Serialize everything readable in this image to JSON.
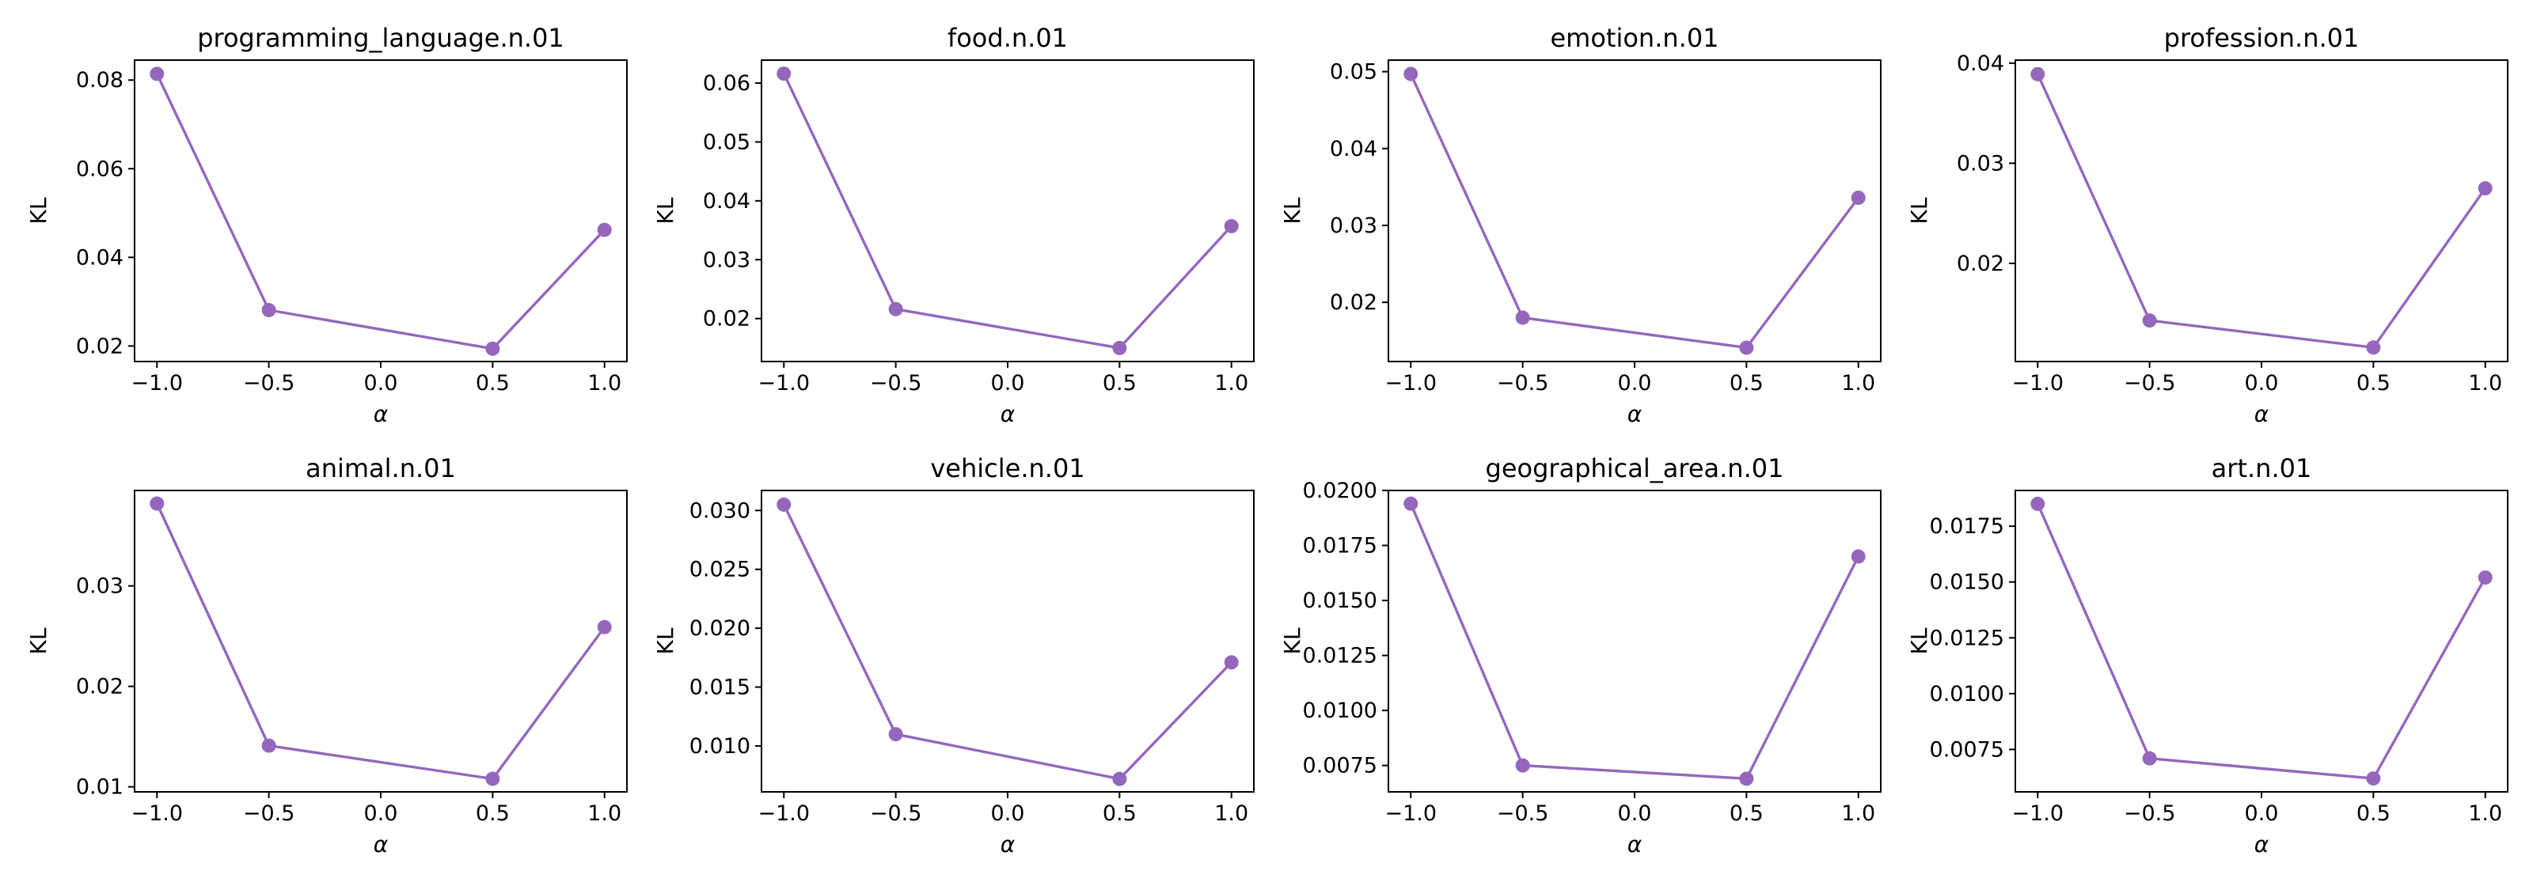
{
  "style": {
    "series_color": "#9467bd",
    "marker": "circle"
  },
  "chart_data": [
    {
      "type": "line",
      "title": "programming_language.n.01",
      "xlabel": "α",
      "ylabel": "KL",
      "x": [
        -1.0,
        -0.5,
        0.5,
        1.0
      ],
      "y": [
        0.0814,
        0.0281,
        0.0194,
        0.0462
      ],
      "xlim": [
        -1.1,
        1.1
      ],
      "ylim": [
        0.0165,
        0.0845
      ],
      "xticks": [
        -1.0,
        -0.5,
        0.0,
        0.5,
        1.0
      ],
      "xtick_labels": [
        "−1.0",
        "−0.5",
        "0.0",
        "0.5",
        "1.0"
      ],
      "yticks": [
        0.02,
        0.04,
        0.06,
        0.08
      ],
      "ytick_labels": [
        "0.02",
        "0.04",
        "0.06",
        "0.08"
      ]
    },
    {
      "type": "line",
      "title": "food.n.01",
      "xlabel": "α",
      "ylabel": "KL",
      "x": [
        -1.0,
        -0.5,
        0.5,
        1.0
      ],
      "y": [
        0.0616,
        0.0216,
        0.015,
        0.0357
      ],
      "xlim": [
        -1.1,
        1.1
      ],
      "ylim": [
        0.0127,
        0.0639
      ],
      "xticks": [
        -1.0,
        -0.5,
        0.0,
        0.5,
        1.0
      ],
      "xtick_labels": [
        "−1.0",
        "−0.5",
        "0.0",
        "0.5",
        "1.0"
      ],
      "yticks": [
        0.02,
        0.03,
        0.04,
        0.05,
        0.06
      ],
      "ytick_labels": [
        "0.02",
        "0.03",
        "0.04",
        "0.05",
        "0.06"
      ]
    },
    {
      "type": "line",
      "title": "emotion.n.01",
      "xlabel": "α",
      "ylabel": "KL",
      "x": [
        -1.0,
        -0.5,
        0.5,
        1.0
      ],
      "y": [
        0.0497,
        0.018,
        0.0141,
        0.0336
      ],
      "xlim": [
        -1.1,
        1.1
      ],
      "ylim": [
        0.0123,
        0.0515
      ],
      "xticks": [
        -1.0,
        -0.5,
        0.0,
        0.5,
        1.0
      ],
      "xtick_labels": [
        "−1.0",
        "−0.5",
        "0.0",
        "0.5",
        "1.0"
      ],
      "yticks": [
        0.02,
        0.03,
        0.04,
        0.05
      ],
      "ytick_labels": [
        "0.02",
        "0.03",
        "0.04",
        "0.05"
      ]
    },
    {
      "type": "line",
      "title": "profession.n.01",
      "xlabel": "α",
      "ylabel": "KL",
      "x": [
        -1.0,
        -0.5,
        0.5,
        1.0
      ],
      "y": [
        0.0389,
        0.0143,
        0.0116,
        0.0275
      ],
      "xlim": [
        -1.1,
        1.1
      ],
      "ylim": [
        0.0102,
        0.0403
      ],
      "xticks": [
        -1.0,
        -0.5,
        0.0,
        0.5,
        1.0
      ],
      "xtick_labels": [
        "−1.0",
        "−0.5",
        "0.0",
        "0.5",
        "1.0"
      ],
      "yticks": [
        0.02,
        0.03,
        0.04
      ],
      "ytick_labels": [
        "0.02",
        "0.03",
        "0.04"
      ]
    },
    {
      "type": "line",
      "title": "animal.n.01",
      "xlabel": "α",
      "ylabel": "KL",
      "x": [
        -1.0,
        -0.5,
        0.5,
        1.0
      ],
      "y": [
        0.0382,
        0.0141,
        0.0108,
        0.0259
      ],
      "xlim": [
        -1.1,
        1.1
      ],
      "ylim": [
        0.0095,
        0.0395
      ],
      "xticks": [
        -1.0,
        -0.5,
        0.0,
        0.5,
        1.0
      ],
      "xtick_labels": [
        "−1.0",
        "−0.5",
        "0.0",
        "0.5",
        "1.0"
      ],
      "yticks": [
        0.01,
        0.02,
        0.03
      ],
      "ytick_labels": [
        "0.01",
        "0.02",
        "0.03"
      ]
    },
    {
      "type": "line",
      "title": "vehicle.n.01",
      "xlabel": "α",
      "ylabel": "KL",
      "x": [
        -1.0,
        -0.5,
        0.5,
        1.0
      ],
      "y": [
        0.0305,
        0.011,
        0.0072,
        0.0171
      ],
      "xlim": [
        -1.1,
        1.1
      ],
      "ylim": [
        0.0061,
        0.0317
      ],
      "xticks": [
        -1.0,
        -0.5,
        0.0,
        0.5,
        1.0
      ],
      "xtick_labels": [
        "−1.0",
        "−0.5",
        "0.0",
        "0.5",
        "1.0"
      ],
      "yticks": [
        0.01,
        0.015,
        0.02,
        0.025,
        0.03
      ],
      "ytick_labels": [
        "0.010",
        "0.015",
        "0.020",
        "0.025",
        "0.030"
      ]
    },
    {
      "type": "line",
      "title": "geographical_area.n.01",
      "xlabel": "α",
      "ylabel": "KL",
      "x": [
        -1.0,
        -0.5,
        0.5,
        1.0
      ],
      "y": [
        0.0194,
        0.0075,
        0.0069,
        0.017
      ],
      "xlim": [
        -1.1,
        1.1
      ],
      "ylim": [
        0.0063,
        0.02
      ],
      "xticks": [
        -1.0,
        -0.5,
        0.0,
        0.5,
        1.0
      ],
      "xtick_labels": [
        "−1.0",
        "−0.5",
        "0.0",
        "0.5",
        "1.0"
      ],
      "yticks": [
        0.0075,
        0.01,
        0.0125,
        0.015,
        0.0175,
        0.02
      ],
      "ytick_labels": [
        "0.0075",
        "0.0100",
        "0.0125",
        "0.0150",
        "0.0175",
        "0.0200"
      ]
    },
    {
      "type": "line",
      "title": "art.n.01",
      "xlabel": "α",
      "ylabel": "KL",
      "x": [
        -1.0,
        -0.5,
        0.5,
        1.0
      ],
      "y": [
        0.0185,
        0.0071,
        0.0062,
        0.0152
      ],
      "xlim": [
        -1.1,
        1.1
      ],
      "ylim": [
        0.0056,
        0.0191
      ],
      "xticks": [
        -1.0,
        -0.5,
        0.0,
        0.5,
        1.0
      ],
      "xtick_labels": [
        "−1.0",
        "−0.5",
        "0.0",
        "0.5",
        "1.0"
      ],
      "yticks": [
        0.0075,
        0.01,
        0.0125,
        0.015,
        0.0175
      ],
      "ytick_labels": [
        "0.0075",
        "0.0100",
        "0.0125",
        "0.0150",
        "0.0175"
      ]
    }
  ]
}
